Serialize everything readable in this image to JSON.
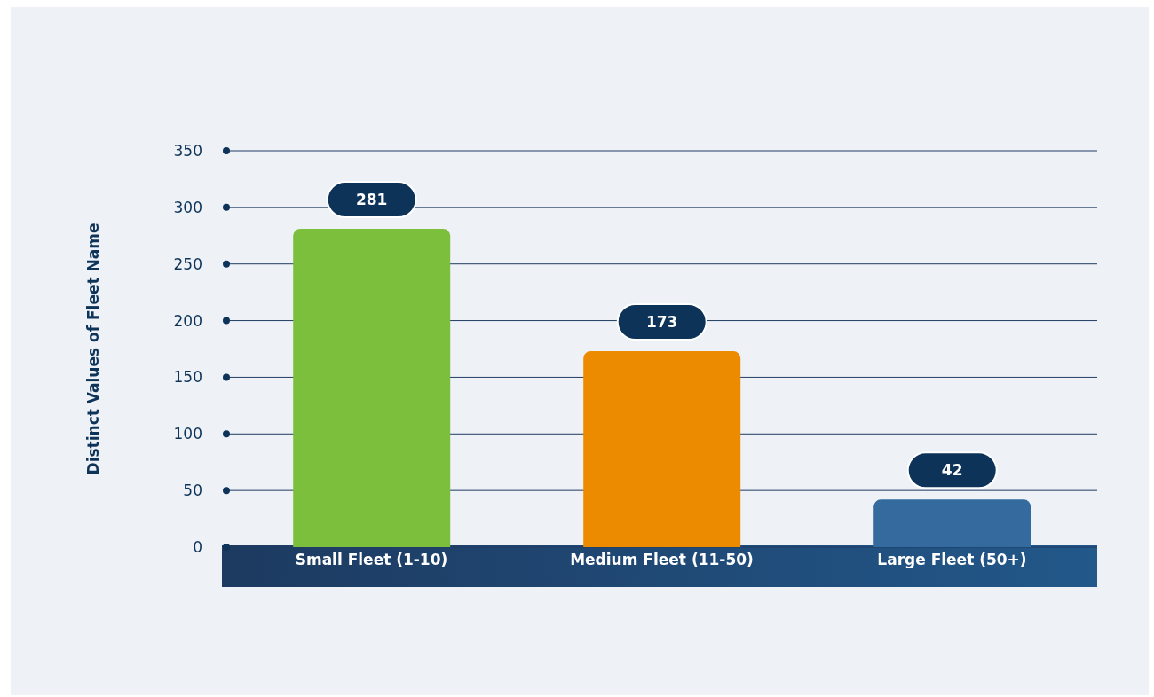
{
  "chart_data": {
    "type": "bar",
    "ylabel": "Distinct Values of Fleet Name",
    "categories": [
      "Small Fleet (1-10)",
      "Medium Fleet (11-50)",
      "Large Fleet (50+)"
    ],
    "values": [
      281,
      173,
      42
    ],
    "colors": [
      "#7bbf3c",
      "#ec8b00",
      "#356a9e"
    ],
    "ylim": [
      0,
      350
    ],
    "yticks": [
      0,
      50,
      100,
      150,
      200,
      250,
      300,
      350
    ],
    "grid": "y",
    "data_labels": true
  }
}
